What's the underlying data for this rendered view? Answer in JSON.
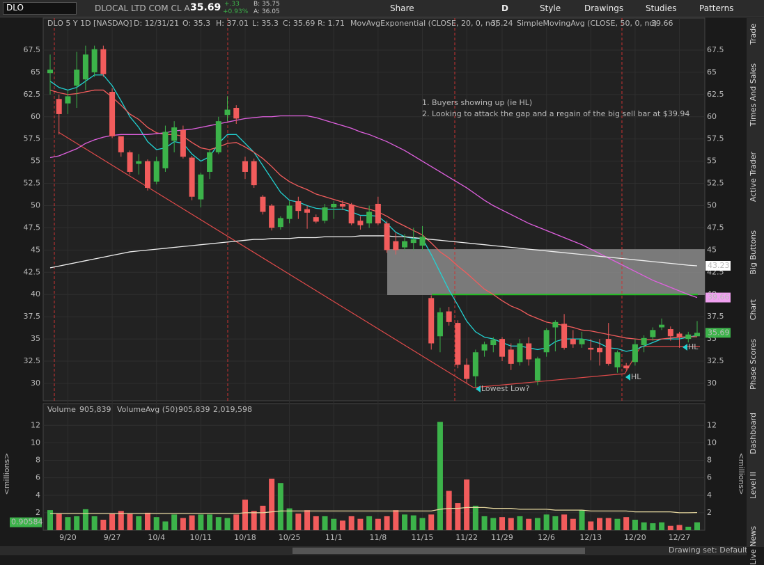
{
  "toolbar": {
    "symbol": "DLO",
    "company": "DLOCAL LTD COM CL A",
    "last": "35.69",
    "change": "+.33",
    "change_pct": "+0.93%",
    "bid": "B: 35.75",
    "ask": "A: 36.05",
    "share": "Share",
    "period": "D",
    "style": "Style",
    "drawings": "Drawings",
    "studies": "Studies",
    "patterns": "Patterns"
  },
  "header": {
    "symbol": "DLO 5 Y 1D [NASDAQ]",
    "date": "D: 12/31/21",
    "open": "O: 35.3",
    "high": "H: 37.01",
    "low": "L: 35.3",
    "close": "C: 35.69",
    "range": "R: 1.71"
  },
  "annotations": {
    "note1": "1. Buyers showing up (ie HL)",
    "note2": "2. Looking to attack the gap and a regain of the big sell bar at $39.94",
    "lowest": "Lowest Low?",
    "hl1": "HL",
    "hl2": "HL"
  },
  "volume_header": {
    "title": "Volume",
    "value": "905,839",
    "avg_name": "VolumeAvg (50)",
    "avg_value": "905,839",
    "avg_value2": "2,019,598",
    "units": "<millions>"
  },
  "side_tabs": [
    "Trade",
    "Times And Sales",
    "Active Trader",
    "Big Buttons",
    "Chart",
    "Phase Scores",
    "Dashboard",
    "Level II",
    "Live News"
  ],
  "footer": "Drawing set: Default",
  "chart_data": [
    {
      "type": "candlestick",
      "up_color": "#3cb34a",
      "down_color": "#f25c5c",
      "categories": [
        null,
        null,
        "9/20",
        null,
        null,
        null,
        null,
        "9/27",
        null,
        null,
        null,
        null,
        "10/4",
        null,
        null,
        null,
        null,
        "10/11",
        null,
        null,
        null,
        null,
        "10/18",
        null,
        null,
        null,
        null,
        "10/25",
        null,
        null,
        null,
        null,
        "11/1",
        null,
        null,
        null,
        null,
        "11/8",
        null,
        null,
        null,
        null,
        "11/15",
        null,
        null,
        null,
        null,
        "11/22",
        null,
        null,
        null,
        "11/29",
        null,
        null,
        null,
        null,
        "12/6",
        null,
        null,
        null,
        null,
        "12/13",
        null,
        null,
        null,
        null,
        "12/20",
        null,
        null,
        null,
        null,
        "12/27",
        null,
        null
      ],
      "open": [
        64.9,
        62,
        61.5,
        63.5,
        64.2,
        65,
        67.6,
        62.8,
        57.8,
        56,
        54.7,
        55,
        52.7,
        54.2,
        57.3,
        58.5,
        55.4,
        50.7,
        53.8,
        56,
        60.2,
        61,
        55,
        55,
        51,
        50,
        47.6,
        48.5,
        50.5,
        49.6,
        48.7,
        48.3,
        49.8,
        50.2,
        50.1,
        48.3,
        48,
        50.2,
        48,
        46,
        45.3,
        45.8,
        45.5,
        39.6,
        35.3,
        38.1,
        36.8,
        32.1,
        30.8,
        33.7,
        34.3,
        35,
        33.8,
        32.4,
        34.5,
        30.3,
        33.5,
        36.3,
        36.7,
        35,
        34.4,
        34,
        34,
        35,
        31.8,
        32,
        32.4,
        34.3,
        35.2,
        36.3,
        36.1,
        35.6,
        35,
        35.3
      ],
      "high": [
        67,
        62.5,
        63,
        67.3,
        68,
        68,
        68,
        63.2,
        57.8,
        56.2,
        55.8,
        55.2,
        55.5,
        59,
        59.5,
        59,
        55.6,
        53.7,
        56.3,
        60,
        62.3,
        61.3,
        55.5,
        55.3,
        51.2,
        50.2,
        48.8,
        50.5,
        51,
        50,
        49,
        50.2,
        50.5,
        50.6,
        50.3,
        48.8,
        50,
        51,
        48.3,
        47,
        46.8,
        47.5,
        47.7,
        39.9,
        38.5,
        38.6,
        37.1,
        32.8,
        33.8,
        34.7,
        35.2,
        35.2,
        34.5,
        35,
        35.2,
        33,
        36.2,
        37.1,
        37.8,
        36,
        35.8,
        35,
        35,
        36.8,
        33.7,
        32.3,
        35,
        35.4,
        36.3,
        37.3,
        36.4,
        35.8,
        35.8,
        37.01
      ],
      "low": [
        62.5,
        58,
        60.3,
        61,
        63,
        64.5,
        64.5,
        57.6,
        55.5,
        53.5,
        53.5,
        51.7,
        52.4,
        53.8,
        56,
        55.3,
        50.6,
        49.8,
        53,
        55.8,
        59.5,
        59.2,
        53,
        52,
        49,
        47.2,
        47.3,
        48,
        48.5,
        47.4,
        48,
        48,
        48.5,
        49.5,
        47.8,
        47.3,
        47.5,
        47.8,
        44.7,
        44.5,
        45,
        45,
        45,
        33.8,
        33.5,
        36.5,
        31.7,
        30,
        29.6,
        33,
        33.5,
        32.5,
        31.5,
        32,
        32,
        29.8,
        33,
        33.6,
        33.8,
        34,
        34,
        32.6,
        32,
        32,
        31.2,
        31.5,
        32,
        33.5,
        34.8,
        36,
        34.8,
        34,
        34.6,
        35.3
      ],
      "close": [
        65.3,
        60.3,
        62.3,
        65.3,
        67,
        67.6,
        64.8,
        57.8,
        56,
        53.8,
        55,
        52,
        55,
        58.3,
        58.8,
        55.5,
        51,
        53.5,
        56,
        59.5,
        60.8,
        59.8,
        53.8,
        52.3,
        49.3,
        47.5,
        48.6,
        50,
        49.4,
        49.2,
        48.2,
        49.8,
        50.2,
        49.9,
        48,
        47.8,
        49.3,
        48,
        45,
        45,
        46,
        46.2,
        46.5,
        34.5,
        38,
        36.9,
        32.1,
        30.5,
        33.5,
        34.4,
        34.9,
        33,
        32.2,
        34.5,
        32.7,
        32.8,
        36,
        36.9,
        34,
        34.4,
        35,
        33.8,
        33.5,
        32.2,
        33.5,
        31.7,
        34.4,
        35.1,
        36,
        36.6,
        35.3,
        35.2,
        35.5,
        35.69
      ],
      "ylim": [
        28.04,
        71.1
      ],
      "yticks": [
        30,
        32.5,
        35,
        37.5,
        40,
        42.5,
        45,
        47.5,
        50,
        52.5,
        55,
        57.5,
        60,
        62.5,
        65,
        67.5
      ],
      "gap_zone": [
        39.94,
        45.1
      ],
      "support_level": 40,
      "series": [
        {
          "color": "#22d3d3",
          "values": [
            64,
            63.3,
            63,
            63.3,
            64,
            64.7,
            64.7,
            63.5,
            61.8,
            60,
            58.8,
            57.2,
            56.3,
            56.5,
            57.2,
            57,
            55.8,
            55,
            55.5,
            57,
            58,
            58,
            57,
            56,
            54.5,
            53,
            51.5,
            50.6,
            50.4,
            50,
            49.7,
            49.6,
            49.6,
            49.6,
            49.3,
            48.9,
            48.9,
            48.8,
            48,
            47,
            46.5,
            46.3,
            46.3,
            44.5,
            42.5,
            40.5,
            38.8,
            37,
            35.8,
            35.2,
            35,
            34.6,
            34.2,
            34.2,
            34,
            33.8,
            34,
            34.7,
            35,
            35,
            35,
            34.8,
            34.5,
            34,
            33.9,
            33.6,
            33.8,
            34.2,
            34.6,
            35,
            35,
            35,
            35.2,
            35.4
          ]
        },
        {
          "name": "MovAvgExponential (CLOSE, 20, 0, no)",
          "color": "#f25c5c",
          "values": [
            63,
            62.7,
            62.5,
            62.6,
            62.8,
            63,
            63,
            62.2,
            61.3,
            60.3,
            59.7,
            58.8,
            58.2,
            58,
            58,
            57.8,
            57.1,
            56.5,
            56.3,
            56.6,
            57,
            57.1,
            56.6,
            56,
            55.3,
            54.4,
            53.4,
            52.7,
            52.2,
            51.8,
            51.3,
            51,
            50.7,
            50.4,
            50.1,
            49.8,
            49.6,
            49.3,
            48.8,
            48.2,
            47.7,
            47.2,
            46.7,
            45.8,
            44.8,
            44.1,
            43.2,
            42.4,
            41.5,
            40.6,
            40,
            39.3,
            38.7,
            38.3,
            37.7,
            37.3,
            36.9,
            36.7,
            36.5,
            36.3,
            36,
            35.9,
            35.7,
            35.5,
            35.3,
            35.1,
            35,
            34.9,
            34.9,
            35,
            35.1,
            35.2,
            35.24,
            35.24
          ]
        },
        {
          "name": "SimpleMovingAvg (CLOSE, 50, 0, no)",
          "color": "#e060e0",
          "values": [
            55.4,
            55.6,
            56,
            56.4,
            57,
            57.4,
            57.7,
            57.9,
            58,
            58,
            58,
            58,
            58.1,
            58.2,
            58.4,
            58.5,
            58.6,
            58.8,
            59,
            59.2,
            59.4,
            59.6,
            59.8,
            59.9,
            60,
            60,
            60.1,
            60.1,
            60.1,
            60.1,
            59.9,
            59.6,
            59.3,
            59,
            58.7,
            58.3,
            58,
            57.6,
            57.2,
            56.7,
            56.2,
            55.6,
            55,
            54.4,
            53.8,
            53.2,
            52.6,
            52,
            51.3,
            50.6,
            50,
            49.5,
            49,
            48.5,
            48,
            47.6,
            47.2,
            46.8,
            46.4,
            46,
            45.6,
            45.1,
            44.6,
            44.1,
            43.6,
            43.1,
            42.6,
            42.1,
            41.6,
            41.2,
            40.8,
            40.4,
            40,
            39.66
          ]
        },
        {
          "color": "#f0f0f0",
          "values": [
            43,
            43.2,
            43.4,
            43.6,
            43.8,
            44,
            44.2,
            44.4,
            44.6,
            44.8,
            44.9,
            45,
            45.1,
            45.2,
            45.3,
            45.4,
            45.5,
            45.6,
            45.7,
            45.8,
            45.9,
            46,
            46.1,
            46.2,
            46.2,
            46.3,
            46.3,
            46.3,
            46.4,
            46.4,
            46.4,
            46.5,
            46.5,
            46.5,
            46.5,
            46.6,
            46.6,
            46.6,
            46.6,
            46.5,
            46.5,
            46.4,
            46.3,
            46.2,
            46.1,
            46,
            45.9,
            45.8,
            45.7,
            45.6,
            45.5,
            45.4,
            45.3,
            45.2,
            45.1,
            45,
            44.9,
            44.8,
            44.7,
            44.6,
            44.5,
            44.4,
            44.3,
            44.2,
            44.1,
            44,
            43.9,
            43.8,
            43.7,
            43.6,
            43.5,
            43.4,
            43.3,
            43.23
          ]
        }
      ]
    },
    {
      "type": "bar",
      "name": "Volume",
      "values": [
        2.3,
        1.9,
        1.5,
        1.6,
        2.4,
        1.6,
        1.2,
        1.9,
        2.2,
        1.9,
        1.6,
        2,
        1.5,
        1,
        1.8,
        1.4,
        1.7,
        1.8,
        1.8,
        1.5,
        1.4,
        1.8,
        3.5,
        2.2,
        2.8,
        5.9,
        5.4,
        2.5,
        1.9,
        2.3,
        1.6,
        1.6,
        1.3,
        1.1,
        1.6,
        1.3,
        1.6,
        1.3,
        1.6,
        2.3,
        1.8,
        1.7,
        1.4,
        1.8,
        12.4,
        4.5,
        3.1,
        5.8,
        2.8,
        1.6,
        1.4,
        1.5,
        1.4,
        1.6,
        1.3,
        1.4,
        1.8,
        1.6,
        1.8,
        1.3,
        2.3,
        1,
        1.4,
        1.4,
        1.3,
        1.5,
        1.2,
        0.9,
        0.8,
        0.9,
        0.5,
        0.6,
        0.4,
        0.90584
      ],
      "ylim": [
        0,
        12.9
      ],
      "yticks": [
        2,
        4,
        6,
        8,
        10,
        12
      ],
      "series": [
        {
          "name": "VolumeAvg (50)",
          "color": "#e8d9a0",
          "values": [
            1.9,
            1.9,
            1.9,
            1.9,
            1.9,
            1.9,
            1.9,
            1.9,
            1.9,
            1.9,
            1.9,
            1.9,
            1.9,
            1.9,
            1.9,
            1.9,
            1.9,
            1.9,
            1.9,
            1.9,
            1.9,
            1.9,
            2,
            2,
            2,
            2.1,
            2.2,
            2.2,
            2.2,
            2.2,
            2.2,
            2.2,
            2.2,
            2.2,
            2.2,
            2.2,
            2.2,
            2.2,
            2.2,
            2.2,
            2.2,
            2.2,
            2.2,
            2.2,
            2.4,
            2.5,
            2.5,
            2.6,
            2.6,
            2.6,
            2.5,
            2.5,
            2.5,
            2.4,
            2.4,
            2.4,
            2.4,
            2.3,
            2.3,
            2.3,
            2.3,
            2.2,
            2.2,
            2.2,
            2.2,
            2.2,
            2.1,
            2.1,
            2.1,
            2.1,
            2.1,
            2,
            2,
            2.02
          ]
        }
      ]
    }
  ]
}
